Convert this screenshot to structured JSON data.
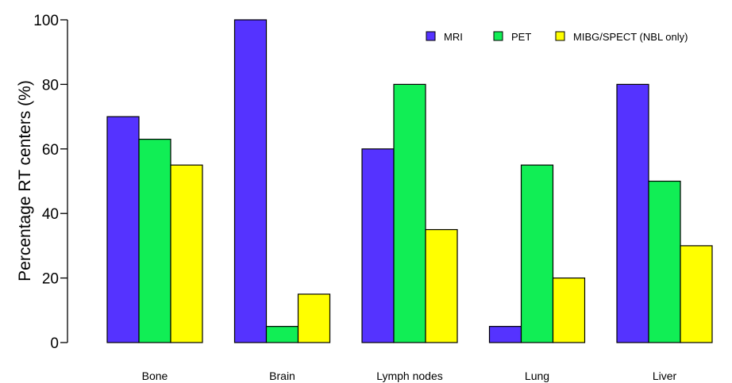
{
  "chart_data": {
    "type": "bar",
    "title": "",
    "xlabel": "",
    "ylabel": "Percentage RT centers (%)",
    "ylim": [
      0,
      100
    ],
    "yticks": [
      0,
      20,
      40,
      60,
      80,
      100
    ],
    "categories": [
      "Bone",
      "Brain",
      "Lymph nodes",
      "Lung",
      "Liver"
    ],
    "series": [
      {
        "name": "MRI",
        "color": "#5533ff",
        "values": [
          70,
          100,
          60,
          5,
          80
        ]
      },
      {
        "name": "PET",
        "color": "#11ee55",
        "values": [
          63,
          5,
          80,
          55,
          50
        ]
      },
      {
        "name": "MIBG/SPECT (NBL only)",
        "color": "#ffff00",
        "values": [
          55,
          15,
          35,
          20,
          30
        ]
      }
    ],
    "legend_position": "top-right",
    "grid": false
  }
}
